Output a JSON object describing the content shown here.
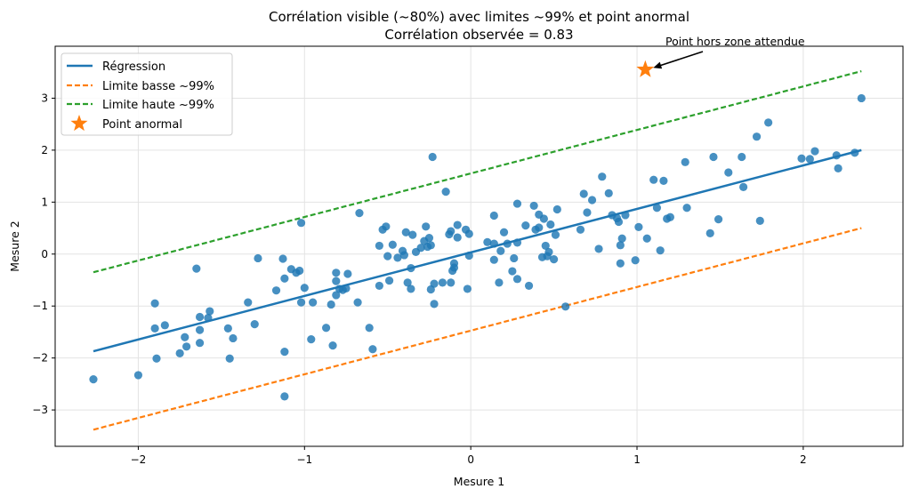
{
  "chart_data": {
    "type": "scatter",
    "title": "Corrélation visible (~80%) avec limites ~99% et point anormal",
    "subtitle": "Corrélation observée = 0.83",
    "xlabel": "Mesure 1",
    "ylabel": "Mesure 2",
    "xlim": [
      -2.5,
      2.6
    ],
    "ylim": [
      -3.7,
      4.0
    ],
    "xticks": [
      -2,
      -1,
      0,
      1,
      2
    ],
    "yticks": [
      -3,
      -2,
      -1,
      0,
      1,
      2,
      3
    ],
    "grid": true,
    "legend_position": "top-left",
    "colors": {
      "points": "#1f77b4",
      "regression": "#1f77b4",
      "lower": "#ff7f0e",
      "upper": "#2ca02c",
      "anomaly": "#ff7f0e"
    },
    "lines": [
      {
        "name": "Régression",
        "style": "solid",
        "color": "#1f77b4",
        "x": [
          -2.27,
          2.35
        ],
        "y": [
          -1.87,
          2.0
        ]
      },
      {
        "name": "Limite basse ~99%",
        "style": "dashed",
        "color": "#ff7f0e",
        "x": [
          -2.27,
          2.35
        ],
        "y": [
          -3.38,
          0.5
        ]
      },
      {
        "name": "Limite haute ~99%",
        "style": "dashed",
        "color": "#2ca02c",
        "x": [
          -2.27,
          2.35
        ],
        "y": [
          -0.35,
          3.52
        ]
      }
    ],
    "anomaly": {
      "name": "Point anormal",
      "x": 1.05,
      "y": 3.55
    },
    "annotation": {
      "text": "Point hors zone attendue",
      "x": 1.35,
      "y": 3.85
    },
    "points": [
      [
        -2.27,
        -2.41
      ],
      [
        -2.0,
        -2.33
      ],
      [
        -1.9,
        -0.95
      ],
      [
        -1.89,
        -2.01
      ],
      [
        -1.9,
        -1.43
      ],
      [
        -1.84,
        -1.37
      ],
      [
        -1.75,
        -1.91
      ],
      [
        -1.72,
        -1.6
      ],
      [
        -1.71,
        -1.78
      ],
      [
        -1.65,
        -0.28
      ],
      [
        -1.63,
        -1.21
      ],
      [
        -1.63,
        -1.46
      ],
      [
        -1.63,
        -1.71
      ],
      [
        -1.58,
        -1.23
      ],
      [
        -1.57,
        -1.1
      ],
      [
        -1.46,
        -1.43
      ],
      [
        -1.45,
        -2.01
      ],
      [
        -1.43,
        -1.62
      ],
      [
        -1.34,
        -0.93
      ],
      [
        -1.3,
        -1.35
      ],
      [
        -1.28,
        -0.08
      ],
      [
        -1.17,
        -0.7
      ],
      [
        -1.13,
        -0.09
      ],
      [
        -1.12,
        -0.47
      ],
      [
        -1.12,
        -1.88
      ],
      [
        -1.12,
        -2.74
      ],
      [
        -1.08,
        -0.29
      ],
      [
        -1.05,
        -0.36
      ],
      [
        -1.03,
        -0.32
      ],
      [
        -1.02,
        -0.93
      ],
      [
        -1.02,
        0.6
      ],
      [
        -1.0,
        -0.65
      ],
      [
        -0.96,
        -1.64
      ],
      [
        -0.95,
        -0.93
      ],
      [
        -0.87,
        -1.42
      ],
      [
        -0.84,
        -0.97
      ],
      [
        -0.83,
        -1.76
      ],
      [
        -0.81,
        -0.36
      ],
      [
        -0.81,
        -0.52
      ],
      [
        -0.81,
        -0.79
      ],
      [
        -0.79,
        -0.67
      ],
      [
        -0.77,
        -0.69
      ],
      [
        -0.75,
        -0.66
      ],
      [
        -0.74,
        -0.38
      ],
      [
        -0.68,
        -0.93
      ],
      [
        -0.67,
        0.79
      ],
      [
        -0.61,
        -1.42
      ],
      [
        -0.59,
        -1.83
      ],
      [
        -0.55,
        0.16
      ],
      [
        -0.55,
        -0.61
      ],
      [
        -0.53,
        0.47
      ],
      [
        -0.51,
        0.53
      ],
      [
        -0.5,
        -0.04
      ],
      [
        -0.49,
        -0.51
      ],
      [
        -0.47,
        0.18
      ],
      [
        -0.44,
        -0.07
      ],
      [
        -0.41,
        0.06
      ],
      [
        -0.4,
        -0.02
      ],
      [
        -0.39,
        0.42
      ],
      [
        -0.38,
        -0.55
      ],
      [
        -0.36,
        -0.27
      ],
      [
        -0.36,
        -0.67
      ],
      [
        -0.35,
        0.37
      ],
      [
        -0.33,
        0.04
      ],
      [
        -0.3,
        0.12
      ],
      [
        -0.28,
        0.25
      ],
      [
        -0.27,
        0.53
      ],
      [
        -0.26,
        0.14
      ],
      [
        -0.25,
        0.31
      ],
      [
        -0.24,
        0.17
      ],
      [
        -0.23,
        1.87
      ],
      [
        -0.24,
        -0.68
      ],
      [
        -0.22,
        -0.96
      ],
      [
        -0.22,
        -0.57
      ],
      [
        -0.17,
        -0.55
      ],
      [
        -0.15,
        1.2
      ],
      [
        -0.13,
        0.38
      ],
      [
        -0.12,
        0.44
      ],
      [
        -0.12,
        -0.55
      ],
      [
        -0.11,
        -0.32
      ],
      [
        -0.1,
        -0.26
      ],
      [
        -0.1,
        -0.18
      ],
      [
        -0.08,
        0.56
      ],
      [
        -0.08,
        0.32
      ],
      [
        -0.03,
        0.47
      ],
      [
        -0.02,
        -0.67
      ],
      [
        -0.01,
        0.39
      ],
      [
        -0.01,
        -0.03
      ],
      [
        0.1,
        0.23
      ],
      [
        0.14,
        0.74
      ],
      [
        0.14,
        0.2
      ],
      [
        0.14,
        -0.11
      ],
      [
        0.17,
        -0.55
      ],
      [
        0.18,
        0.06
      ],
      [
        0.2,
        0.42
      ],
      [
        0.22,
        0.2
      ],
      [
        0.25,
        -0.33
      ],
      [
        0.26,
        -0.08
      ],
      [
        0.28,
        -0.48
      ],
      [
        0.28,
        0.97
      ],
      [
        0.28,
        0.22
      ],
      [
        0.33,
        0.55
      ],
      [
        0.35,
        -0.61
      ],
      [
        0.38,
        0.93
      ],
      [
        0.39,
        0.47
      ],
      [
        0.41,
        0.51
      ],
      [
        0.41,
        0.76
      ],
      [
        0.43,
        -0.06
      ],
      [
        0.44,
        0.68
      ],
      [
        0.45,
        0.16
      ],
      [
        0.46,
        -0.04
      ],
      [
        0.47,
        0.04
      ],
      [
        0.48,
        0.57
      ],
      [
        0.5,
        -0.1
      ],
      [
        0.51,
        0.37
      ],
      [
        0.52,
        0.86
      ],
      [
        0.57,
        -1.01
      ],
      [
        0.66,
        0.47
      ],
      [
        0.68,
        1.16
      ],
      [
        0.7,
        0.8
      ],
      [
        0.73,
        1.04
      ],
      [
        0.77,
        0.1
      ],
      [
        0.79,
        1.49
      ],
      [
        0.83,
        1.17
      ],
      [
        0.85,
        0.75
      ],
      [
        0.88,
        0.69
      ],
      [
        0.89,
        0.62
      ],
      [
        0.9,
        -0.18
      ],
      [
        0.9,
        0.17
      ],
      [
        0.91,
        0.3
      ],
      [
        0.93,
        0.75
      ],
      [
        0.99,
        -0.12
      ],
      [
        1.01,
        0.52
      ],
      [
        1.06,
        0.3
      ],
      [
        1.1,
        1.43
      ],
      [
        1.12,
        0.89
      ],
      [
        1.14,
        0.07
      ],
      [
        1.16,
        1.41
      ],
      [
        1.18,
        0.68
      ],
      [
        1.2,
        0.71
      ],
      [
        1.29,
        1.77
      ],
      [
        1.3,
        0.89
      ],
      [
        1.44,
        0.4
      ],
      [
        1.46,
        1.87
      ],
      [
        1.49,
        0.67
      ],
      [
        1.55,
        1.57
      ],
      [
        1.63,
        1.87
      ],
      [
        1.64,
        1.29
      ],
      [
        1.72,
        2.26
      ],
      [
        1.74,
        0.64
      ],
      [
        1.79,
        2.53
      ],
      [
        1.99,
        1.84
      ],
      [
        2.04,
        1.83
      ],
      [
        2.07,
        1.98
      ],
      [
        2.2,
        1.9
      ],
      [
        2.21,
        1.65
      ],
      [
        2.31,
        1.95
      ],
      [
        2.35,
        3.0
      ]
    ],
    "legend": [
      "Régression",
      "Limite basse ~99%",
      "Limite haute ~99%",
      "Point anormal"
    ]
  }
}
